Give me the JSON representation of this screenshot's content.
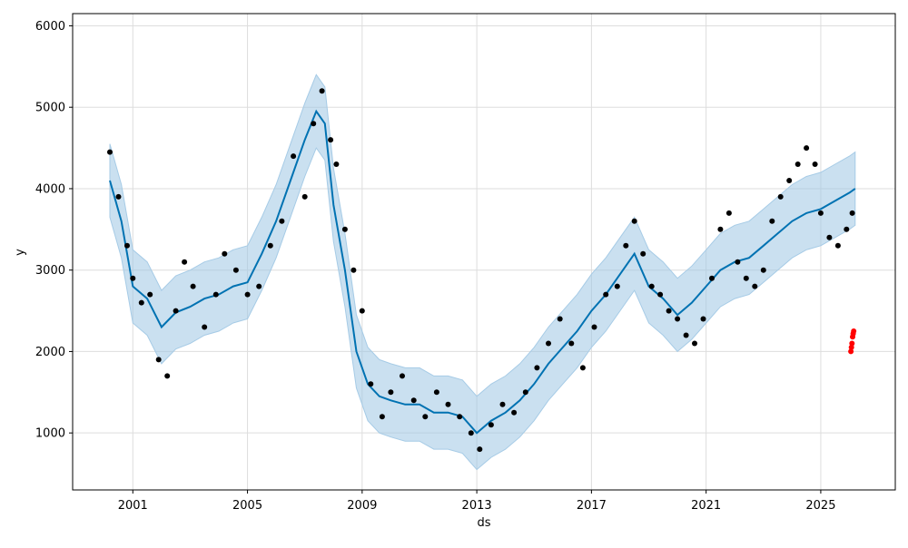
{
  "chart_data": {
    "type": "line",
    "title": "",
    "xlabel": "ds",
    "ylabel": "y",
    "xlim": [
      1998.9,
      2027.6
    ],
    "ylim": [
      300,
      6150
    ],
    "x_ticks": [
      2001,
      2005,
      2009,
      2013,
      2017,
      2021,
      2025
    ],
    "x_tick_labels": [
      "2001",
      "2005",
      "2009",
      "2013",
      "2017",
      "2021",
      "2025"
    ],
    "y_ticks": [
      1000,
      2000,
      3000,
      4000,
      5000,
      6000
    ],
    "y_tick_labels": [
      "1000",
      "2000",
      "3000",
      "4000",
      "5000",
      "6000"
    ],
    "grid": true,
    "colors": {
      "observed": "#000000",
      "forecast": "#0072b2",
      "interval": "#9ec6e3",
      "outliers": "#ff0000",
      "grid": "#dddddd"
    },
    "series": [
      {
        "kind": "forecast-line",
        "x": [
          2000.2,
          2000.6,
          2001.0,
          2001.5,
          2002.0,
          2002.5,
          2003.0,
          2003.5,
          2004.0,
          2004.5,
          2005.0,
          2005.5,
          2006.0,
          2006.5,
          2007.0,
          2007.4,
          2007.7,
          2008.0,
          2008.4,
          2008.8,
          2009.2,
          2009.6,
          2010.0,
          2010.5,
          2011.0,
          2011.5,
          2012.0,
          2012.5,
          2013.0,
          2013.5,
          2014.0,
          2014.5,
          2015.0,
          2015.5,
          2016.0,
          2016.5,
          2017.0,
          2017.5,
          2018.0,
          2018.5,
          2019.0,
          2019.5,
          2020.0,
          2020.5,
          2021.0,
          2021.5,
          2022.0,
          2022.5,
          2023.0,
          2023.5,
          2024.0,
          2024.5,
          2025.0,
          2025.5,
          2026.0,
          2026.2
        ],
        "y": [
          4100,
          3600,
          2800,
          2650,
          2300,
          2480,
          2550,
          2650,
          2700,
          2800,
          2850,
          3200,
          3600,
          4100,
          4600,
          4950,
          4800,
          3800,
          3000,
          2000,
          1600,
          1450,
          1400,
          1350,
          1350,
          1250,
          1250,
          1200,
          1000,
          1150,
          1250,
          1400,
          1600,
          1850,
          2050,
          2250,
          2500,
          2700,
          2950,
          3200,
          2800,
          2650,
          2450,
          2600,
          2800,
          3000,
          3100,
          3150,
          3300,
          3450,
          3600,
          3700,
          3750,
          3850,
          3950,
          4000
        ]
      },
      {
        "kind": "uncertainty-band",
        "x": [
          2000.2,
          2000.6,
          2001.0,
          2001.5,
          2002.0,
          2002.5,
          2003.0,
          2003.5,
          2004.0,
          2004.5,
          2005.0,
          2005.5,
          2006.0,
          2006.5,
          2007.0,
          2007.4,
          2007.7,
          2008.0,
          2008.4,
          2008.8,
          2009.2,
          2009.6,
          2010.0,
          2010.5,
          2011.0,
          2011.5,
          2012.0,
          2012.5,
          2013.0,
          2013.5,
          2014.0,
          2014.5,
          2015.0,
          2015.5,
          2016.0,
          2016.5,
          2017.0,
          2017.5,
          2018.0,
          2018.5,
          2019.0,
          2019.5,
          2020.0,
          2020.5,
          2021.0,
          2021.5,
          2022.0,
          2022.5,
          2023.0,
          2023.5,
          2024.0,
          2024.5,
          2025.0,
          2025.5,
          2026.0,
          2026.2
        ],
        "upper": [
          4550,
          4050,
          3250,
          3100,
          2750,
          2930,
          3000,
          3100,
          3150,
          3250,
          3300,
          3650,
          4050,
          4550,
          5050,
          5400,
          5250,
          4250,
          3450,
          2450,
          2050,
          1900,
          1850,
          1800,
          1800,
          1700,
          1700,
          1650,
          1450,
          1600,
          1700,
          1850,
          2050,
          2300,
          2500,
          2700,
          2950,
          3150,
          3400,
          3650,
          3250,
          3100,
          2900,
          3050,
          3250,
          3450,
          3550,
          3600,
          3750,
          3900,
          4050,
          4150,
          4200,
          4300,
          4400,
          4450
        ],
        "lower": [
          3650,
          3150,
          2350,
          2200,
          1850,
          2030,
          2100,
          2200,
          2250,
          2350,
          2400,
          2750,
          3150,
          3650,
          4150,
          4500,
          4350,
          3350,
          2550,
          1550,
          1150,
          1000,
          950,
          900,
          900,
          800,
          800,
          750,
          550,
          700,
          800,
          950,
          1150,
          1400,
          1600,
          1800,
          2050,
          2250,
          2500,
          2750,
          2350,
          2200,
          2000,
          2150,
          2350,
          2550,
          2650,
          2700,
          2850,
          3000,
          3150,
          3250,
          3300,
          3400,
          3500,
          3550
        ]
      },
      {
        "kind": "observed-points",
        "x": [
          2000.2,
          2000.5,
          2000.8,
          2001.0,
          2001.3,
          2001.6,
          2001.9,
          2002.2,
          2002.5,
          2002.8,
          2003.1,
          2003.5,
          2003.9,
          2004.2,
          2004.6,
          2005.0,
          2005.4,
          2005.8,
          2006.2,
          2006.6,
          2007.0,
          2007.3,
          2007.6,
          2007.9,
          2008.1,
          2008.4,
          2008.7,
          2009.0,
          2009.3,
          2009.7,
          2010.0,
          2010.4,
          2010.8,
          2011.2,
          2011.6,
          2012.0,
          2012.4,
          2012.8,
          2013.1,
          2013.5,
          2013.9,
          2014.3,
          2014.7,
          2015.1,
          2015.5,
          2015.9,
          2016.3,
          2016.7,
          2017.1,
          2017.5,
          2017.9,
          2018.2,
          2018.5,
          2018.8,
          2019.1,
          2019.4,
          2019.7,
          2020.0,
          2020.3,
          2020.6,
          2020.9,
          2021.2,
          2021.5,
          2021.8,
          2022.1,
          2022.4,
          2022.7,
          2023.0,
          2023.3,
          2023.6,
          2023.9,
          2024.2,
          2024.5,
          2024.8,
          2025.0,
          2025.3,
          2025.6,
          2025.9,
          2026.1
        ],
        "y": [
          4450,
          3900,
          3300,
          2900,
          2600,
          2700,
          1900,
          1700,
          2500,
          3100,
          2800,
          2300,
          2700,
          3200,
          3000,
          2700,
          2800,
          3300,
          3600,
          4400,
          3900,
          4800,
          5200,
          4600,
          4300,
          3500,
          3000,
          2500,
          1600,
          1200,
          1500,
          1700,
          1400,
          1200,
          1500,
          1350,
          1200,
          1000,
          800,
          1100,
          1350,
          1250,
          1500,
          1800,
          2100,
          2400,
          2100,
          1800,
          2300,
          2700,
          2800,
          3300,
          3600,
          3200,
          2800,
          2700,
          2500,
          2400,
          2200,
          2100,
          2400,
          2900,
          3500,
          3700,
          3100,
          2900,
          2800,
          3000,
          3600,
          3900,
          4100,
          4300,
          4500,
          4300,
          3700,
          3400,
          3300,
          3500,
          3700
        ]
      },
      {
        "kind": "outlier-points",
        "x": [
          2026.05,
          2026.07,
          2026.09,
          2026.11,
          2026.13,
          2026.15
        ],
        "y": [
          2000,
          2050,
          2100,
          2180,
          2220,
          2250
        ]
      }
    ]
  }
}
